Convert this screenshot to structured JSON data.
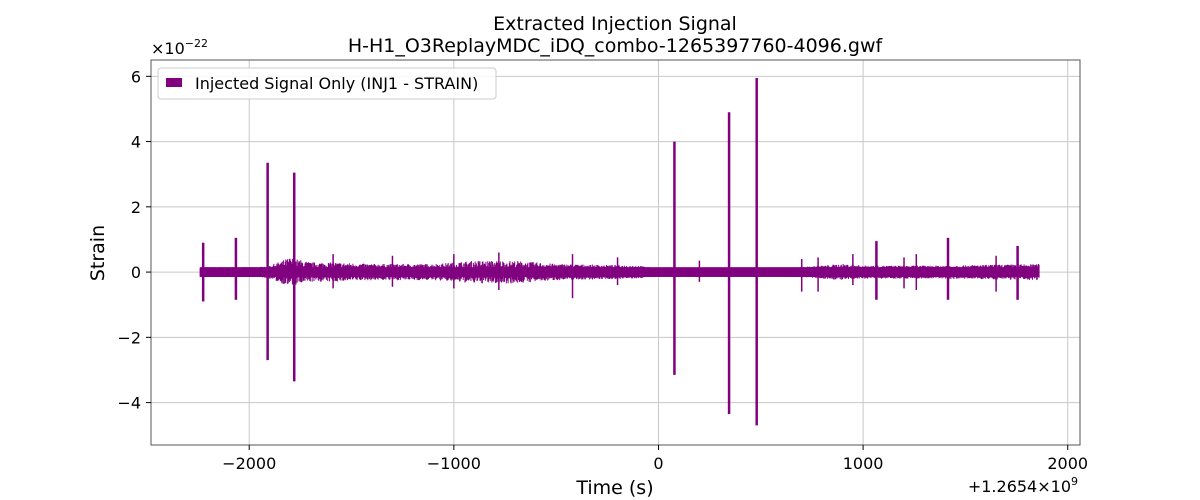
{
  "chart_data": {
    "type": "line",
    "title": "Extracted Injection Signal",
    "subtitle": "H-H1_O3ReplayMDC_iDQ_combo-1265397760-4096.gwf",
    "xlabel": "Time (s)",
    "ylabel": "Strain",
    "x_offset_label": "+1.2654×10",
    "x_offset_exp": "9",
    "y_scale_label": "×10",
    "y_scale_exp": "−22",
    "xlim": [
      -2480,
      2060
    ],
    "ylim": [
      -5.3,
      6.5
    ],
    "x_ticks": [
      -2000,
      -1000,
      0,
      1000,
      2000
    ],
    "x_tick_labels": [
      "−2000",
      "−1000",
      "0",
      "1000",
      "2000"
    ],
    "y_ticks": [
      -4,
      -2,
      0,
      2,
      4,
      6
    ],
    "y_tick_labels": [
      "−4",
      "−2",
      "0",
      "2",
      "4",
      "6"
    ],
    "grid": true,
    "legend_position": "top-left",
    "color": "#800080",
    "series": [
      {
        "name": "Injected Signal Only (INJ1 - STRAIN)",
        "x_range": [
          -2240,
          1860
        ],
        "base_amplitude": 0.15,
        "envelope": [
          [
            -2240,
            0.15
          ],
          [
            -1950,
            0.15
          ],
          [
            -1900,
            0.2
          ],
          [
            -1800,
            0.45
          ],
          [
            -1700,
            0.3
          ],
          [
            -1600,
            0.3
          ],
          [
            -1400,
            0.25
          ],
          [
            -1100,
            0.25
          ],
          [
            -900,
            0.35
          ],
          [
            -700,
            0.35
          ],
          [
            -500,
            0.25
          ],
          [
            -100,
            0.2
          ],
          [
            0,
            0.1
          ],
          [
            400,
            0.1
          ],
          [
            700,
            0.15
          ],
          [
            900,
            0.25
          ],
          [
            1000,
            0.2
          ],
          [
            1400,
            0.2
          ],
          [
            1860,
            0.25
          ]
        ],
        "spikes": [
          {
            "x": -2225,
            "max": 0.9,
            "min": -0.9
          },
          {
            "x": -2065,
            "max": 1.05,
            "min": -0.85
          },
          {
            "x": -1910,
            "max": 3.35,
            "min": -2.7
          },
          {
            "x": -1780,
            "max": 3.05,
            "min": -3.35
          },
          {
            "x": 78,
            "max": 4.0,
            "min": -3.15
          },
          {
            "x": 345,
            "max": 4.9,
            "min": -4.35
          },
          {
            "x": 480,
            "max": 5.95,
            "min": -4.7
          },
          {
            "x": 1065,
            "max": 0.95,
            "min": -0.85
          },
          {
            "x": 1415,
            "max": 1.05,
            "min": -0.85
          },
          {
            "x": 1755,
            "max": 0.8,
            "min": -0.85
          }
        ],
        "bursts": [
          {
            "x": -1590,
            "max": 0.55,
            "min": -0.5
          },
          {
            "x": -1300,
            "max": 0.5,
            "min": -0.45
          },
          {
            "x": -1000,
            "max": 0.55,
            "min": -0.5
          },
          {
            "x": -780,
            "max": 0.6,
            "min": -0.55
          },
          {
            "x": -420,
            "max": 0.55,
            "min": -0.8
          },
          {
            "x": -200,
            "max": 0.45,
            "min": -0.4
          },
          {
            "x": 200,
            "max": 0.35,
            "min": -0.3
          },
          {
            "x": 700,
            "max": 0.4,
            "min": -0.6
          },
          {
            "x": 780,
            "max": 0.45,
            "min": -0.6
          },
          {
            "x": 950,
            "max": 0.55,
            "min": -0.4
          },
          {
            "x": 1200,
            "max": 0.45,
            "min": -0.5
          },
          {
            "x": 1260,
            "max": 0.55,
            "min": -0.55
          },
          {
            "x": 1650,
            "max": 0.5,
            "min": -0.6
          }
        ]
      }
    ]
  }
}
